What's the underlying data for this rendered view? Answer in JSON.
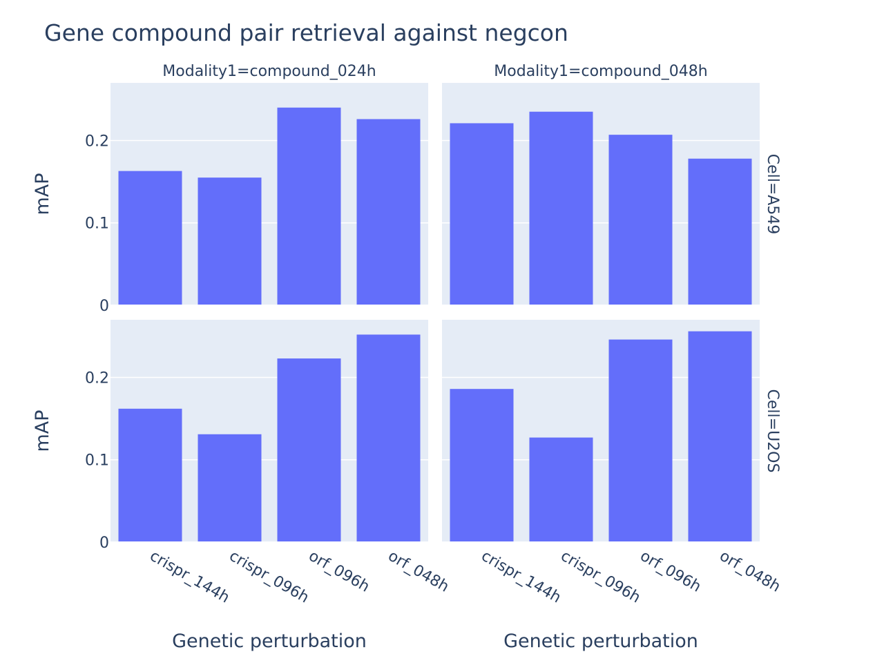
{
  "chart_data": {
    "type": "bar",
    "title": "Gene compound pair retrieval against negcon",
    "xlabel": "Genetic perturbation",
    "ylabel": "mAP",
    "ylim": [
      0,
      0.27
    ],
    "yticks": [
      0,
      0.1,
      0.2
    ],
    "ytick_labels": [
      "0",
      "0.1",
      "0.2"
    ],
    "grid": true,
    "bar_color": "#636efa",
    "plot_bg": "#e5ecf6",
    "categories": [
      "crispr_144h",
      "crispr_096h",
      "orf_096h",
      "orf_048h"
    ],
    "col_titles": [
      "Modality1=compound_024h",
      "Modality1=compound_048h"
    ],
    "row_titles": [
      "Cell=A549",
      "Cell=U2OS"
    ],
    "panels": [
      {
        "row": 0,
        "col": 0,
        "values": [
          0.163,
          0.155,
          0.24,
          0.226
        ]
      },
      {
        "row": 0,
        "col": 1,
        "values": [
          0.221,
          0.235,
          0.207,
          0.178
        ]
      },
      {
        "row": 1,
        "col": 0,
        "values": [
          0.162,
          0.131,
          0.223,
          0.252
        ]
      },
      {
        "row": 1,
        "col": 1,
        "values": [
          0.186,
          0.127,
          0.246,
          0.256
        ]
      }
    ]
  }
}
